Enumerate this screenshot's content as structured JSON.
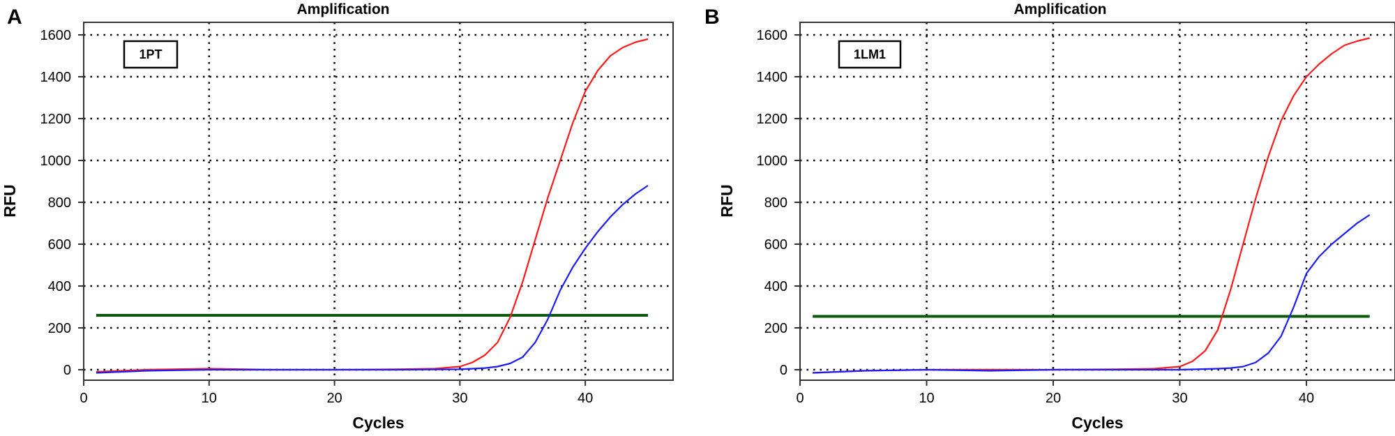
{
  "chart_data": [
    {
      "type": "line",
      "panel_label": "A",
      "title": "Amplification",
      "xlabel": "Cycles",
      "ylabel": "RFU",
      "annotation": "1PT",
      "xlim": [
        0,
        47
      ],
      "ylim": [
        -50,
        1660
      ],
      "xticks": [
        0,
        10,
        20,
        30,
        40
      ],
      "yticks": [
        0,
        200,
        400,
        600,
        800,
        1000,
        1200,
        1400,
        1600
      ],
      "grid": true,
      "threshold": {
        "value": 260,
        "x": [
          1,
          45
        ],
        "color": "#0b5a0b"
      },
      "series": [
        {
          "color": "#ff1a1a",
          "x": [
            1,
            5,
            10,
            15,
            20,
            25,
            28,
            30,
            31,
            32,
            33,
            34,
            35,
            36,
            37,
            38,
            39,
            40,
            41,
            42,
            43,
            44,
            45
          ],
          "y": [
            -10,
            0,
            5,
            0,
            0,
            2,
            5,
            15,
            35,
            70,
            130,
            250,
            420,
            620,
            820,
            1000,
            1180,
            1330,
            1430,
            1500,
            1540,
            1565,
            1580
          ]
        },
        {
          "color": "#1a1aff",
          "x": [
            1,
            5,
            10,
            15,
            20,
            25,
            30,
            32,
            33,
            34,
            35,
            36,
            37,
            38,
            39,
            40,
            41,
            42,
            43,
            44,
            45
          ],
          "y": [
            -15,
            -5,
            0,
            0,
            0,
            0,
            2,
            8,
            15,
            30,
            60,
            130,
            240,
            380,
            490,
            580,
            660,
            730,
            790,
            840,
            880
          ]
        }
      ]
    },
    {
      "type": "line",
      "panel_label": "B",
      "title": "Amplification",
      "xlabel": "Cycles",
      "ylabel": "RFU",
      "annotation": "1LM1",
      "xlim": [
        0,
        47
      ],
      "ylim": [
        -50,
        1660
      ],
      "xticks": [
        0,
        10,
        20,
        30,
        40
      ],
      "yticks": [
        0,
        200,
        400,
        600,
        800,
        1000,
        1200,
        1400,
        1600
      ],
      "grid": true,
      "threshold": {
        "value": 255,
        "x": [
          1,
          45
        ],
        "color": "#0b5a0b"
      },
      "series": [
        {
          "color": "#ff1a1a",
          "x": [
            1,
            5,
            10,
            15,
            20,
            25,
            28,
            30,
            31,
            32,
            33,
            34,
            35,
            36,
            37,
            38,
            39,
            40,
            41,
            42,
            43,
            44,
            45
          ],
          "y": [
            -15,
            -5,
            0,
            0,
            0,
            2,
            5,
            15,
            40,
            90,
            190,
            380,
            600,
            820,
            1020,
            1190,
            1310,
            1400,
            1460,
            1510,
            1550,
            1570,
            1585
          ]
        },
        {
          "color": "#1a1aff",
          "x": [
            1,
            5,
            10,
            15,
            20,
            25,
            30,
            33,
            34,
            35,
            36,
            37,
            38,
            39,
            40,
            41,
            42,
            43,
            44,
            45
          ],
          "y": [
            -15,
            -5,
            0,
            -5,
            0,
            0,
            0,
            5,
            8,
            15,
            35,
            80,
            160,
            300,
            460,
            540,
            600,
            650,
            700,
            740
          ]
        }
      ]
    }
  ]
}
